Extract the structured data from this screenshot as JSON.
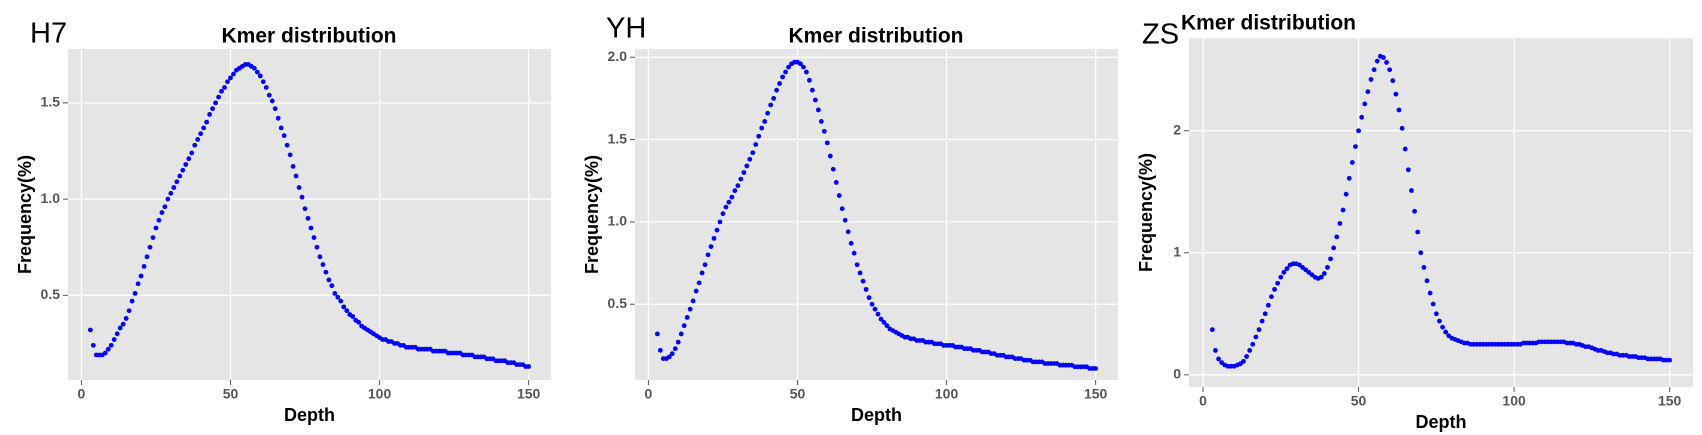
{
  "chart_data": [
    {
      "type": "scatter",
      "panel_label": "H7",
      "title": "Kmer distribution",
      "x_label": "Depth",
      "y_label": "Frequency(%)",
      "color": "#0000ff",
      "grid": true,
      "xlim": [
        -4.5,
        157.5
      ],
      "ylim": [
        0.06,
        1.78
      ],
      "xticks": [
        0,
        50,
        100,
        150
      ],
      "yticks": [
        0.5,
        {
          "value": 1.0,
          "label": "1.0"
        },
        1.5
      ],
      "x": [
        3,
        4,
        5,
        6,
        7,
        8,
        9,
        10,
        11,
        12,
        13,
        14,
        15,
        16,
        17,
        18,
        19,
        20,
        21,
        22,
        23,
        24,
        25,
        26,
        27,
        28,
        29,
        30,
        31,
        32,
        33,
        34,
        35,
        36,
        37,
        38,
        39,
        40,
        41,
        42,
        43,
        44,
        45,
        46,
        47,
        48,
        49,
        50,
        51,
        52,
        53,
        54,
        55,
        56,
        57,
        58,
        59,
        60,
        61,
        62,
        63,
        64,
        65,
        66,
        67,
        68,
        69,
        70,
        71,
        72,
        73,
        74,
        75,
        76,
        77,
        78,
        79,
        80,
        81,
        82,
        83,
        84,
        85,
        86,
        87,
        88,
        89,
        90,
        91,
        92,
        93,
        94,
        95,
        96,
        97,
        98,
        99,
        100,
        101,
        102,
        103,
        104,
        105,
        106,
        107,
        108,
        109,
        110,
        111,
        112,
        113,
        114,
        115,
        116,
        117,
        118,
        119,
        120,
        121,
        122,
        123,
        124,
        125,
        126,
        127,
        128,
        129,
        130,
        131,
        132,
        133,
        134,
        135,
        136,
        137,
        138,
        139,
        140,
        141,
        142,
        143,
        144,
        145,
        146,
        147,
        148,
        149,
        150
      ],
      "values": [
        0.32,
        0.24,
        0.19,
        0.19,
        0.19,
        0.2,
        0.22,
        0.24,
        0.27,
        0.3,
        0.33,
        0.35,
        0.38,
        0.42,
        0.47,
        0.51,
        0.56,
        0.6,
        0.65,
        0.7,
        0.75,
        0.8,
        0.85,
        0.89,
        0.93,
        0.96,
        1.0,
        1.03,
        1.06,
        1.09,
        1.12,
        1.15,
        1.18,
        1.21,
        1.24,
        1.28,
        1.31,
        1.34,
        1.37,
        1.4,
        1.44,
        1.47,
        1.5,
        1.53,
        1.56,
        1.58,
        1.61,
        1.63,
        1.65,
        1.67,
        1.68,
        1.69,
        1.7,
        1.7,
        1.69,
        1.68,
        1.66,
        1.64,
        1.61,
        1.58,
        1.54,
        1.51,
        1.47,
        1.42,
        1.37,
        1.33,
        1.28,
        1.23,
        1.17,
        1.12,
        1.06,
        1.01,
        0.95,
        0.9,
        0.85,
        0.8,
        0.75,
        0.7,
        0.66,
        0.62,
        0.58,
        0.55,
        0.51,
        0.49,
        0.47,
        0.44,
        0.42,
        0.4,
        0.39,
        0.37,
        0.36,
        0.34,
        0.33,
        0.32,
        0.31,
        0.3,
        0.29,
        0.28,
        0.27,
        0.27,
        0.26,
        0.26,
        0.25,
        0.25,
        0.24,
        0.24,
        0.23,
        0.23,
        0.23,
        0.23,
        0.22,
        0.22,
        0.22,
        0.22,
        0.22,
        0.21,
        0.21,
        0.21,
        0.21,
        0.21,
        0.2,
        0.2,
        0.2,
        0.2,
        0.2,
        0.19,
        0.19,
        0.19,
        0.19,
        0.18,
        0.18,
        0.18,
        0.18,
        0.17,
        0.17,
        0.17,
        0.16,
        0.16,
        0.16,
        0.16,
        0.15,
        0.15,
        0.15,
        0.14,
        0.14,
        0.14,
        0.13,
        0.13
      ]
    },
    {
      "type": "scatter",
      "panel_label": "YH",
      "title": "Kmer distribution",
      "x_label": "Depth",
      "y_label": "Frequency(%)",
      "color": "#0000ff",
      "grid": true,
      "xlim": [
        -4.5,
        157.5
      ],
      "ylim": [
        0.04,
        2.05
      ],
      "xticks": [
        0,
        50,
        100,
        150
      ],
      "yticks": [
        0.5,
        {
          "value": 1.0,
          "label": "1.0"
        },
        1.5,
        {
          "value": 2.0,
          "label": "2.0"
        }
      ],
      "x": [
        3,
        4,
        5,
        6,
        7,
        8,
        9,
        10,
        11,
        12,
        13,
        14,
        15,
        16,
        17,
        18,
        19,
        20,
        21,
        22,
        23,
        24,
        25,
        26,
        27,
        28,
        29,
        30,
        31,
        32,
        33,
        34,
        35,
        36,
        37,
        38,
        39,
        40,
        41,
        42,
        43,
        44,
        45,
        46,
        47,
        48,
        49,
        50,
        51,
        52,
        53,
        54,
        55,
        56,
        57,
        58,
        59,
        60,
        61,
        62,
        63,
        64,
        65,
        66,
        67,
        68,
        69,
        70,
        71,
        72,
        73,
        74,
        75,
        76,
        77,
        78,
        79,
        80,
        81,
        82,
        83,
        84,
        85,
        86,
        87,
        88,
        89,
        90,
        91,
        92,
        93,
        94,
        95,
        96,
        97,
        98,
        99,
        100,
        101,
        102,
        103,
        104,
        105,
        106,
        107,
        108,
        109,
        110,
        111,
        112,
        113,
        114,
        115,
        116,
        117,
        118,
        119,
        120,
        121,
        122,
        123,
        124,
        125,
        126,
        127,
        128,
        129,
        130,
        131,
        132,
        133,
        134,
        135,
        136,
        137,
        138,
        139,
        140,
        141,
        142,
        143,
        144,
        145,
        146,
        147,
        148,
        149,
        150
      ],
      "values": [
        0.32,
        0.22,
        0.17,
        0.17,
        0.18,
        0.2,
        0.23,
        0.27,
        0.32,
        0.37,
        0.42,
        0.47,
        0.52,
        0.58,
        0.63,
        0.69,
        0.74,
        0.8,
        0.85,
        0.9,
        0.95,
        1.0,
        1.05,
        1.09,
        1.12,
        1.15,
        1.19,
        1.22,
        1.26,
        1.3,
        1.34,
        1.38,
        1.42,
        1.47,
        1.52,
        1.57,
        1.61,
        1.66,
        1.71,
        1.75,
        1.8,
        1.84,
        1.88,
        1.91,
        1.94,
        1.96,
        1.97,
        1.97,
        1.96,
        1.94,
        1.91,
        1.86,
        1.8,
        1.74,
        1.68,
        1.61,
        1.55,
        1.48,
        1.4,
        1.32,
        1.24,
        1.16,
        1.08,
        1.01,
        0.94,
        0.87,
        0.81,
        0.74,
        0.69,
        0.64,
        0.59,
        0.54,
        0.5,
        0.47,
        0.44,
        0.41,
        0.39,
        0.37,
        0.35,
        0.34,
        0.33,
        0.32,
        0.31,
        0.3,
        0.3,
        0.29,
        0.29,
        0.28,
        0.28,
        0.28,
        0.27,
        0.27,
        0.27,
        0.26,
        0.26,
        0.26,
        0.25,
        0.25,
        0.25,
        0.25,
        0.24,
        0.24,
        0.24,
        0.23,
        0.23,
        0.23,
        0.22,
        0.22,
        0.22,
        0.21,
        0.21,
        0.21,
        0.2,
        0.2,
        0.19,
        0.19,
        0.19,
        0.18,
        0.18,
        0.18,
        0.17,
        0.17,
        0.17,
        0.16,
        0.16,
        0.16,
        0.15,
        0.15,
        0.15,
        0.15,
        0.14,
        0.14,
        0.14,
        0.14,
        0.14,
        0.13,
        0.13,
        0.13,
        0.13,
        0.13,
        0.12,
        0.12,
        0.12,
        0.12,
        0.12,
        0.11,
        0.11,
        0.11
      ]
    },
    {
      "type": "scatter",
      "panel_label": "ZS",
      "title": "Kmer distribution",
      "x_label": "Depth",
      "y_label": "Frequency(%)",
      "color": "#0000ff",
      "grid": true,
      "xlim": [
        -4.5,
        157.5
      ],
      "ylim": [
        -0.1,
        2.76
      ],
      "xticks": [
        0,
        50,
        100,
        150
      ],
      "yticks": [
        0,
        1,
        2
      ],
      "x": [
        3,
        4,
        5,
        6,
        7,
        8,
        9,
        10,
        11,
        12,
        13,
        14,
        15,
        16,
        17,
        18,
        19,
        20,
        21,
        22,
        23,
        24,
        25,
        26,
        27,
        28,
        29,
        30,
        31,
        32,
        33,
        34,
        35,
        36,
        37,
        38,
        39,
        40,
        41,
        42,
        43,
        44,
        45,
        46,
        47,
        48,
        49,
        50,
        51,
        52,
        53,
        54,
        55,
        56,
        57,
        58,
        59,
        60,
        61,
        62,
        63,
        64,
        65,
        66,
        67,
        68,
        69,
        70,
        71,
        72,
        73,
        74,
        75,
        76,
        77,
        78,
        79,
        80,
        81,
        82,
        83,
        84,
        85,
        86,
        87,
        88,
        89,
        90,
        91,
        92,
        93,
        94,
        95,
        96,
        97,
        98,
        99,
        100,
        101,
        102,
        103,
        104,
        105,
        106,
        107,
        108,
        109,
        110,
        111,
        112,
        113,
        114,
        115,
        116,
        117,
        118,
        119,
        120,
        121,
        122,
        123,
        124,
        125,
        126,
        127,
        128,
        129,
        130,
        131,
        132,
        133,
        134,
        135,
        136,
        137,
        138,
        139,
        140,
        141,
        142,
        143,
        144,
        145,
        146,
        147,
        148,
        149,
        150
      ],
      "values": [
        0.37,
        0.2,
        0.13,
        0.1,
        0.08,
        0.07,
        0.07,
        0.07,
        0.08,
        0.09,
        0.11,
        0.15,
        0.2,
        0.25,
        0.31,
        0.37,
        0.44,
        0.5,
        0.57,
        0.64,
        0.7,
        0.75,
        0.8,
        0.84,
        0.87,
        0.9,
        0.91,
        0.91,
        0.9,
        0.88,
        0.86,
        0.84,
        0.82,
        0.8,
        0.79,
        0.8,
        0.83,
        0.88,
        0.95,
        1.04,
        1.13,
        1.24,
        1.35,
        1.48,
        1.61,
        1.74,
        1.87,
        2.0,
        2.11,
        2.22,
        2.32,
        2.42,
        2.5,
        2.57,
        2.61,
        2.6,
        2.56,
        2.5,
        2.41,
        2.3,
        2.17,
        2.02,
        1.85,
        1.68,
        1.51,
        1.34,
        1.17,
        1.0,
        0.88,
        0.77,
        0.67,
        0.58,
        0.5,
        0.44,
        0.39,
        0.35,
        0.32,
        0.3,
        0.29,
        0.28,
        0.27,
        0.26,
        0.26,
        0.25,
        0.25,
        0.25,
        0.25,
        0.25,
        0.25,
        0.25,
        0.25,
        0.25,
        0.25,
        0.25,
        0.25,
        0.25,
        0.25,
        0.25,
        0.25,
        0.25,
        0.26,
        0.26,
        0.26,
        0.26,
        0.26,
        0.27,
        0.27,
        0.27,
        0.27,
        0.27,
        0.27,
        0.27,
        0.27,
        0.27,
        0.26,
        0.26,
        0.26,
        0.25,
        0.25,
        0.24,
        0.23,
        0.23,
        0.22,
        0.21,
        0.2,
        0.2,
        0.19,
        0.18,
        0.18,
        0.17,
        0.17,
        0.16,
        0.16,
        0.16,
        0.15,
        0.15,
        0.15,
        0.14,
        0.14,
        0.14,
        0.13,
        0.13,
        0.13,
        0.13,
        0.13,
        0.12,
        0.12,
        0.12
      ]
    }
  ]
}
